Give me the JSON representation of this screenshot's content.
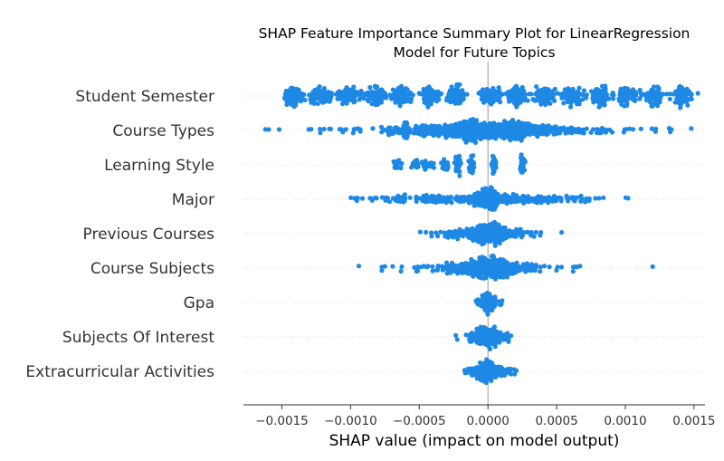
{
  "chart_data": {
    "type": "scatter",
    "subtype": "shap-beeswarm",
    "title_lines": [
      "SHAP Feature Importance Summary Plot for LinearRegression",
      "Model for Future Topics"
    ],
    "xlabel": "SHAP value (impact on model output)",
    "xlim": [
      -0.00178,
      0.00158
    ],
    "xticks": [
      -0.0015,
      -0.001,
      -0.0005,
      0.0,
      0.0005,
      0.001,
      0.0015
    ],
    "xtick_labels": [
      "−0.0015",
      "−0.0010",
      "−0.0005",
      "0.0000",
      "0.0005",
      "0.0010",
      "0.0015"
    ],
    "grid": "horizontal dotted per feature",
    "point_color": "#1e88e5",
    "zero_line_color": "#999999",
    "features": [
      {
        "name": "Student Semester",
        "clusters": [
          [
            -0.00142,
            4e-05,
            60
          ],
          [
            -0.00122,
            4e-05,
            60
          ],
          [
            -0.00102,
            4e-05,
            60
          ],
          [
            -0.00082,
            4e-05,
            60
          ],
          [
            -0.00062,
            4e-05,
            60
          ],
          [
            -0.00042,
            4e-05,
            60
          ],
          [
            -0.00022,
            4e-05,
            60
          ],
          [
            1e-05,
            4e-05,
            60
          ],
          [
            0.00021,
            4e-05,
            60
          ],
          [
            0.00041,
            4e-05,
            60
          ],
          [
            0.00061,
            4e-05,
            60
          ],
          [
            0.00081,
            4e-05,
            60
          ],
          [
            0.00101,
            4e-05,
            60
          ],
          [
            0.00121,
            4e-05,
            60
          ],
          [
            0.00141,
            4e-05,
            60
          ]
        ],
        "points": []
      },
      {
        "name": "Course Types",
        "clusters": [
          [
            0.0,
            0.00028,
            700
          ],
          [
            -0.0006,
            1e-05,
            40
          ],
          [
            0.00022,
            4e-05,
            80
          ],
          [
            -0.00012,
            4e-05,
            80
          ],
          [
            0.0,
            0.00065,
            160
          ]
        ],
        "points": [
          -0.00162,
          -0.00152,
          -0.00122,
          -0.00108,
          0.00122,
          0.00132,
          0.00148
        ]
      },
      {
        "name": "Learning Style",
        "clusters": [
          [
            -0.00067,
            2e-05,
            12
          ],
          [
            -0.00052,
            2e-05,
            12
          ],
          [
            -0.00044,
            2e-05,
            12
          ],
          [
            -0.00031,
            2e-05,
            16
          ],
          [
            -0.00022,
            1e-05,
            30
          ],
          [
            -0.00012,
            1e-05,
            30
          ],
          [
            4e-05,
            1e-05,
            30
          ],
          [
            0.00025,
            1e-05,
            30
          ]
        ],
        "points": []
      },
      {
        "name": "Major",
        "clusters": [
          [
            0.0,
            4e-05,
            200
          ],
          [
            0.0,
            0.00042,
            280
          ]
        ],
        "points": [
          -0.00082,
          0.00102
        ]
      },
      {
        "name": "Previous Courses",
        "clusters": [
          [
            0.0,
            8e-05,
            220
          ],
          [
            0.0,
            0.00018,
            160
          ]
        ],
        "points": [
          -0.00041,
          0.00038
        ]
      },
      {
        "name": "Course Subjects",
        "clusters": [
          [
            0.0,
            0.00012,
            320
          ],
          [
            0.0,
            0.00028,
            160
          ]
        ],
        "points": [
          -0.00094,
          -0.00052,
          0.00062,
          0.00064
        ]
      },
      {
        "name": "Gpa",
        "clusters": [
          [
            0.0,
            2e-05,
            120
          ],
          [
            0.0,
            4e-05,
            60
          ]
        ],
        "points": []
      },
      {
        "name": "Subjects Of Interest",
        "clusters": [
          [
            0.0,
            5e-05,
            180
          ],
          [
            0.0,
            0.0001,
            60
          ]
        ],
        "points": [
          -0.00013,
          0.00015
        ]
      },
      {
        "name": "Extracurricular Activities",
        "clusters": [
          [
            0.0,
            5e-05,
            180
          ],
          [
            0.0,
            0.0001,
            60
          ]
        ],
        "points": [
          -0.00011,
          0.00017
        ]
      }
    ]
  }
}
